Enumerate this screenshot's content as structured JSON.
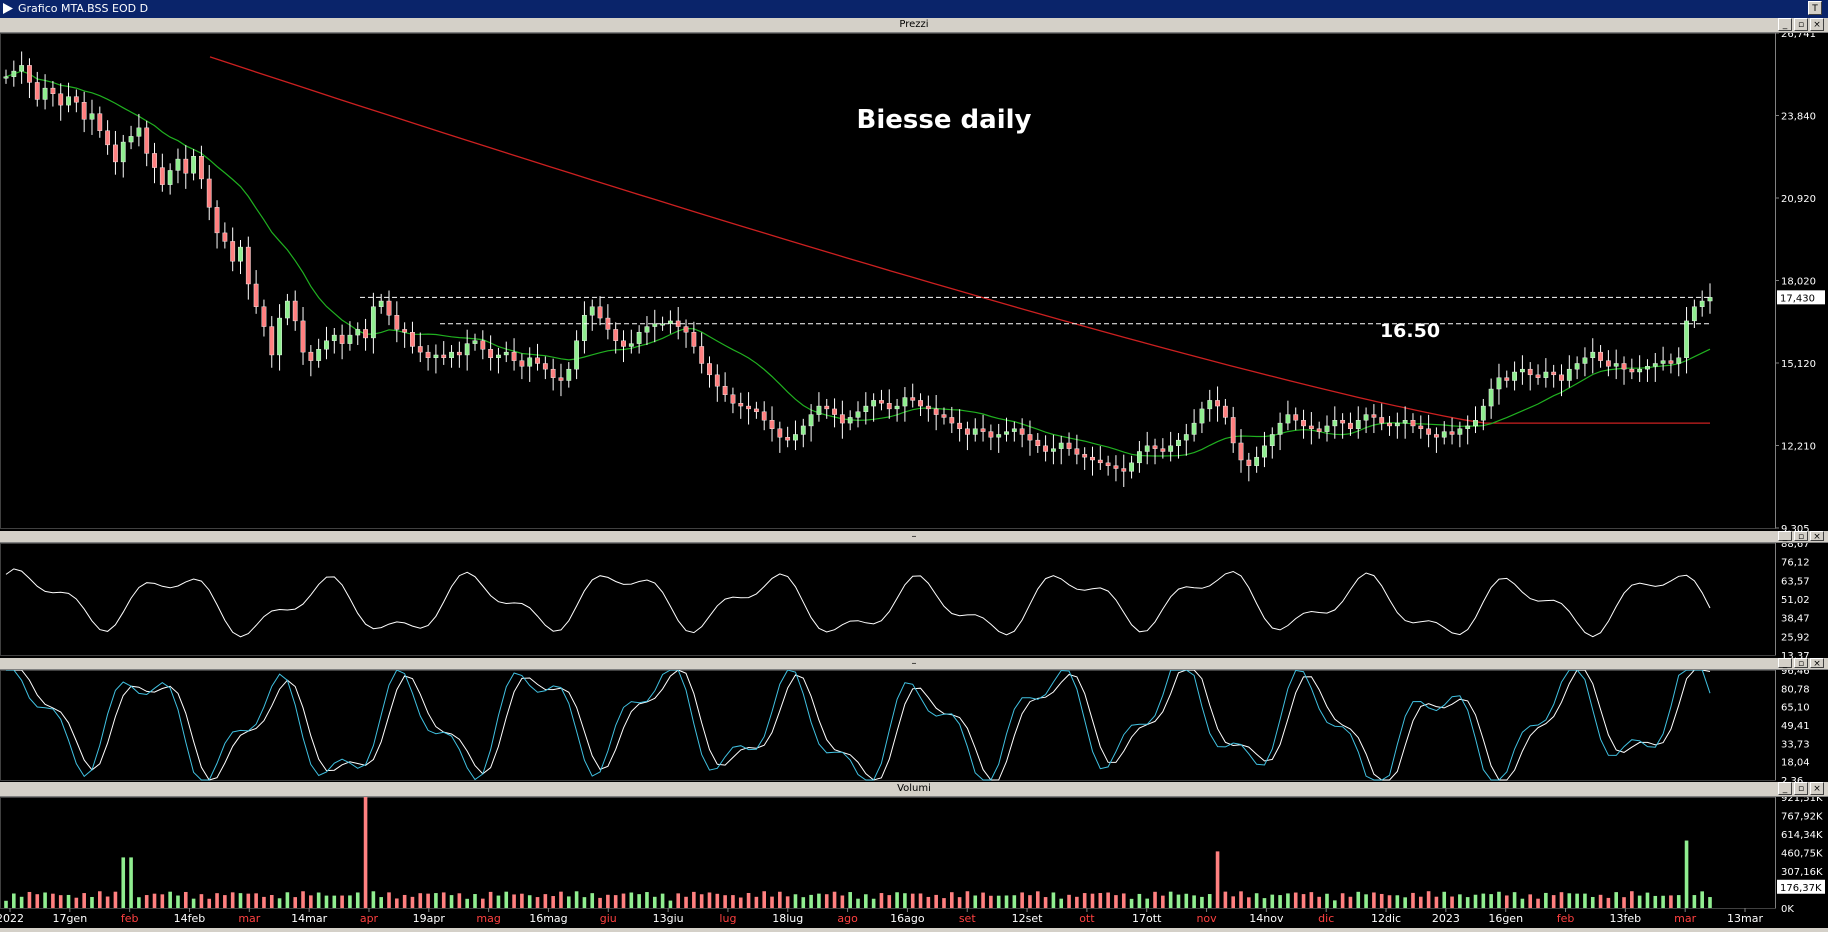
{
  "window": {
    "title": "Grafico MTA.BSS EOD D",
    "corner_label": "T"
  },
  "panels": {
    "price_label": "Prezzi",
    "rsi_label": "–",
    "stoch_label": "–",
    "volume_label": "Volumi"
  },
  "chart_data": [
    {
      "type": "line",
      "name": "price",
      "annotations": {
        "title": "Biesse daily",
        "level_label": "16.50",
        "levels": [
          17.43,
          16.5
        ],
        "last_price": "17,430"
      },
      "ylim": [
        9.305,
        26.741
      ],
      "y_ticks": [
        "26,741",
        "23,840",
        "20,920",
        "18,020",
        "15,120",
        "12,210",
        "9,305"
      ],
      "x_tick_labels": [
        {
          "label": "2022",
          "color": "#ffffff"
        },
        {
          "label": "17gen",
          "color": "#ffffff"
        },
        {
          "label": "feb",
          "color": "#ff4040"
        },
        {
          "label": "14feb",
          "color": "#ffffff"
        },
        {
          "label": "mar",
          "color": "#ff4040"
        },
        {
          "label": "14mar",
          "color": "#ffffff"
        },
        {
          "label": "apr",
          "color": "#ff4040"
        },
        {
          "label": "19apr",
          "color": "#ffffff"
        },
        {
          "label": "mag",
          "color": "#ff4040"
        },
        {
          "label": "16mag",
          "color": "#ffffff"
        },
        {
          "label": "giu",
          "color": "#ff4040"
        },
        {
          "label": "13giu",
          "color": "#ffffff"
        },
        {
          "label": "lug",
          "color": "#ff4040"
        },
        {
          "label": "18lug",
          "color": "#ffffff"
        },
        {
          "label": "ago",
          "color": "#ff4040"
        },
        {
          "label": "16ago",
          "color": "#ffffff"
        },
        {
          "label": "set",
          "color": "#ff4040"
        },
        {
          "label": "12set",
          "color": "#ffffff"
        },
        {
          "label": "ott",
          "color": "#ff4040"
        },
        {
          "label": "17ott",
          "color": "#ffffff"
        },
        {
          "label": "nov",
          "color": "#ff4040"
        },
        {
          "label": "14nov",
          "color": "#ffffff"
        },
        {
          "label": "dic",
          "color": "#ff4040"
        },
        {
          "label": "12dic",
          "color": "#ffffff"
        },
        {
          "label": "2023",
          "color": "#ffffff"
        },
        {
          "label": "16gen",
          "color": "#ffffff"
        },
        {
          "label": "feb",
          "color": "#ff4040"
        },
        {
          "label": "13feb",
          "color": "#ffffff"
        },
        {
          "label": "mar",
          "color": "#ff4040"
        },
        {
          "label": "13mar",
          "color": "#ffffff"
        }
      ],
      "close_series": [
        25.2,
        25.4,
        25.6,
        25.0,
        24.4,
        24.8,
        24.6,
        24.2,
        24.5,
        24.3,
        23.7,
        23.9,
        23.3,
        22.8,
        22.2,
        22.9,
        23.1,
        23.4,
        22.5,
        22.0,
        21.4,
        21.9,
        22.3,
        21.8,
        22.4,
        21.6,
        20.6,
        19.7,
        19.4,
        18.7,
        19.2,
        17.9,
        17.1,
        16.4,
        15.4,
        16.7,
        17.3,
        16.6,
        15.5,
        15.2,
        15.6,
        15.9,
        16.1,
        15.8,
        16.1,
        16.3,
        16.0,
        17.1,
        17.3,
        16.8,
        16.3,
        16.2,
        15.7,
        15.5,
        15.3,
        15.4,
        15.3,
        15.5,
        15.4,
        15.8,
        15.9,
        15.6,
        15.3,
        15.4,
        15.5,
        15.2,
        15.0,
        15.3,
        15.1,
        14.9,
        14.6,
        14.5,
        14.9,
        15.9,
        16.8,
        17.1,
        16.7,
        16.3,
        15.9,
        15.7,
        15.8,
        16.2,
        16.4,
        16.5,
        16.5,
        16.6,
        16.4,
        16.2,
        15.7,
        15.1,
        14.7,
        14.3,
        14.0,
        13.7,
        13.6,
        13.5,
        13.4,
        13.1,
        12.8,
        12.5,
        12.4,
        12.6,
        12.9,
        13.3,
        13.6,
        13.5,
        13.3,
        13.0,
        13.2,
        13.4,
        13.6,
        13.8,
        13.7,
        13.5,
        13.6,
        13.9,
        13.8,
        13.6,
        13.5,
        13.3,
        13.2,
        13.0,
        12.8,
        12.6,
        12.8,
        12.7,
        12.5,
        12.6,
        12.7,
        12.8,
        12.6,
        12.4,
        12.2,
        12.0,
        12.1,
        12.3,
        12.1,
        11.9,
        11.8,
        11.7,
        11.6,
        11.5,
        11.4,
        11.3,
        11.6,
        12.0,
        12.2,
        12.1,
        12.0,
        12.2,
        12.4,
        12.6,
        13.0,
        13.5,
        13.8,
        13.6,
        13.2,
        12.3,
        11.7,
        11.5,
        11.8,
        12.2,
        12.6,
        13.0,
        13.3,
        13.1,
        12.9,
        12.8,
        12.7,
        12.9,
        13.1,
        13.0,
        12.8,
        13.1,
        13.3,
        13.2,
        13.0,
        12.9,
        13.0,
        13.1,
        12.9,
        12.8,
        12.6,
        12.5,
        12.7,
        12.6,
        12.8,
        12.9,
        13.1,
        13.6,
        14.2,
        14.6,
        14.5,
        14.8,
        14.9,
        14.7,
        14.6,
        14.8,
        14.7,
        14.5,
        14.9,
        15.1,
        15.3,
        15.5,
        15.2,
        15.0,
        15.1,
        14.9,
        14.8,
        14.9,
        15.0,
        15.1,
        15.2,
        15.1,
        15.3,
        16.6,
        17.1,
        17.3,
        17.43
      ],
      "ma_slow": {
        "start": 25.9,
        "end": 13.0,
        "end_x_ratio": 0.85,
        "flat_value": 13.0
      },
      "ma_fast": {
        "note": "20-day"
      },
      "ma_colors": {
        "slow": "#cc2020",
        "fast": "#20b020",
        "level": "#ffffff",
        "up": "#90ee90",
        "down": "#ff8080"
      }
    },
    {
      "type": "line",
      "name": "oscillator1",
      "ylim": [
        13.37,
        88.67
      ],
      "y_ticks": [
        "88,67",
        "76,12",
        "63,57",
        "51,02",
        "38,47",
        "25,92",
        "13,37"
      ],
      "line_color": "#ffffff"
    },
    {
      "type": "line",
      "name": "oscillator2",
      "ylim": [
        2.36,
        96.46
      ],
      "y_ticks": [
        "96,46",
        "80,78",
        "65,10",
        "49,41",
        "33,73",
        "18,04",
        "2,36"
      ],
      "series_colors": {
        "k": "#40c0e0",
        "d": "#ffffff"
      }
    },
    {
      "type": "bar",
      "name": "volume",
      "ylim": [
        0,
        921510
      ],
      "y_ticks": [
        "921,51K",
        "767,92K",
        "614,34K",
        "460,75K",
        "307,16K",
        "176,37K",
        "0K"
      ],
      "highlight_last": "176,37K",
      "bar_colors": {
        "up": "#90ee90",
        "down": "#ff8080"
      }
    }
  ]
}
